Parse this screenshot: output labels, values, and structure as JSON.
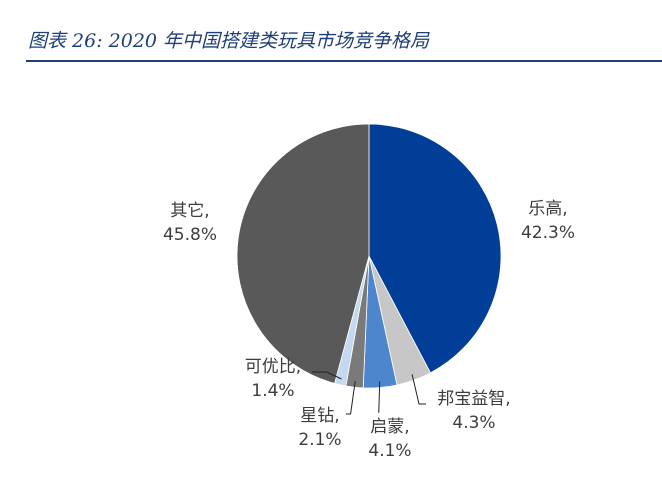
{
  "header": {
    "title": "图表 26:  2020 年中国搭建类玩具市场竞争格局"
  },
  "chart_data": {
    "type": "pie",
    "title": "",
    "slices": [
      {
        "label": "乐高",
        "value": 42.3,
        "value_label": "42.3%",
        "color": "#013e98"
      },
      {
        "label": "邦宝益智",
        "value": 4.3,
        "value_label": "4.3%",
        "color": "#c7c7c7"
      },
      {
        "label": "启蒙",
        "value": 4.1,
        "value_label": "4.1%",
        "color": "#4d86cc"
      },
      {
        "label": "星钻",
        "value": 2.1,
        "value_label": "2.1%",
        "color": "#7a7a7a"
      },
      {
        "label": "可优比",
        "value": 1.4,
        "value_label": "1.4%",
        "color": "#c4d9ef"
      },
      {
        "label": "其它",
        "value": 45.8,
        "value_label": "45.8%",
        "color": "#595959"
      }
    ],
    "start_angle_deg": 0,
    "direction": "clockwise"
  }
}
